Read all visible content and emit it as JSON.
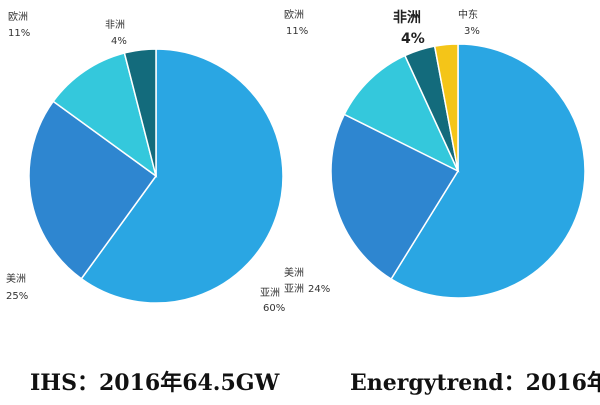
{
  "colors": {
    "asia": "#2aa6e3",
    "america": "#2e86d0",
    "europe": "#34c8dc",
    "africa": "#136b7c",
    "middle_east": "#f4c518"
  },
  "chart_data": [
    {
      "type": "pie",
      "caption": "IHS：2016年64.5GW",
      "slices": [
        {
          "name": "亚洲",
          "value": 60,
          "label": "60%",
          "color_key": "asia"
        },
        {
          "name": "美洲",
          "value": 25,
          "label": "25%",
          "color_key": "america"
        },
        {
          "name": "欧洲",
          "value": 11,
          "label": "11%",
          "color_key": "europe"
        },
        {
          "name": "非洲",
          "value": 4,
          "label": "4%",
          "color_key": "africa"
        }
      ]
    },
    {
      "type": "pie",
      "caption": "Energytrend：2016年",
      "slices": [
        {
          "name": "亚洲",
          "value": 60,
          "label": "",
          "color_key": "asia"
        },
        {
          "name": "美洲",
          "value": 24,
          "label": "24%",
          "color_key": "america"
        },
        {
          "name": "欧洲",
          "value": 11,
          "label": "11%",
          "color_key": "europe"
        },
        {
          "name": "非洲",
          "value": 4,
          "label": "4%",
          "color_key": "africa"
        },
        {
          "name": "中东",
          "value": 3,
          "label": "3%",
          "color_key": "middle_east"
        }
      ]
    }
  ]
}
